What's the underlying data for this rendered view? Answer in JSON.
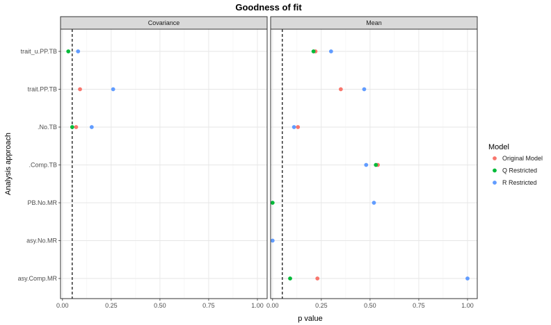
{
  "chart_data": {
    "type": "scatter",
    "title": "Goodness of fit",
    "xlabel": "p value",
    "ylabel": "Analysis approach",
    "xlim": [
      -0.01,
      1.05
    ],
    "x_ticks": [
      "0.00",
      "0.25",
      "0.50",
      "0.75",
      "1.00"
    ],
    "x_tick_values": [
      0,
      0.25,
      0.5,
      0.75,
      1.0
    ],
    "categories": [
      "trait_u.PP.TB",
      "trait.PP.TB",
      ".No.TB",
      ".Comp.TB",
      "PB.No.MR",
      "asy.No.MR",
      "asy.Comp.MR"
    ],
    "reference_line": 0.05,
    "grid": true,
    "legend": {
      "title": "Model",
      "placement": "right",
      "entries": [
        "Original Model",
        "Q Restricted",
        "R Restricted"
      ]
    },
    "colors": {
      "Original Model": "#F8766D",
      "Q Restricted": "#00BA38",
      "R Restricted": "#619CFF"
    },
    "panels": [
      {
        "name": "Covariance",
        "series": [
          {
            "name": "Original Model",
            "points": [
              {
                "category": "trait.PP.TB",
                "x": 0.09
              },
              {
                "category": ".No.TB",
                "x": 0.07
              }
            ]
          },
          {
            "name": "Q Restricted",
            "points": [
              {
                "category": "trait_u.PP.TB",
                "x": 0.03
              },
              {
                "category": ".No.TB",
                "x": 0.05
              }
            ]
          },
          {
            "name": "R Restricted",
            "points": [
              {
                "category": "trait_u.PP.TB",
                "x": 0.08
              },
              {
                "category": "trait.PP.TB",
                "x": 0.26
              },
              {
                "category": ".No.TB",
                "x": 0.15
              }
            ]
          }
        ]
      },
      {
        "name": "Mean",
        "series": [
          {
            "name": "Original Model",
            "points": [
              {
                "category": "trait_u.PP.TB",
                "x": 0.22
              },
              {
                "category": "trait.PP.TB",
                "x": 0.35
              },
              {
                "category": ".No.TB",
                "x": 0.13
              },
              {
                "category": ".Comp.TB",
                "x": 0.54
              },
              {
                "category": "asy.Comp.MR",
                "x": 0.23
              }
            ]
          },
          {
            "name": "Q Restricted",
            "points": [
              {
                "category": "trait_u.PP.TB",
                "x": 0.21
              },
              {
                "category": ".Comp.TB",
                "x": 0.53
              },
              {
                "category": "PB.No.MR",
                "x": 0.0
              },
              {
                "category": "asy.Comp.MR",
                "x": 0.09
              }
            ]
          },
          {
            "name": "R Restricted",
            "points": [
              {
                "category": "trait_u.PP.TB",
                "x": 0.3
              },
              {
                "category": "trait.PP.TB",
                "x": 0.47
              },
              {
                "category": ".No.TB",
                "x": 0.11
              },
              {
                "category": ".Comp.TB",
                "x": 0.48
              },
              {
                "category": "PB.No.MR",
                "x": 0.52
              },
              {
                "category": "asy.No.MR",
                "x": 0.0
              },
              {
                "category": "asy.Comp.MR",
                "x": 1.0
              }
            ]
          }
        ]
      }
    ]
  }
}
